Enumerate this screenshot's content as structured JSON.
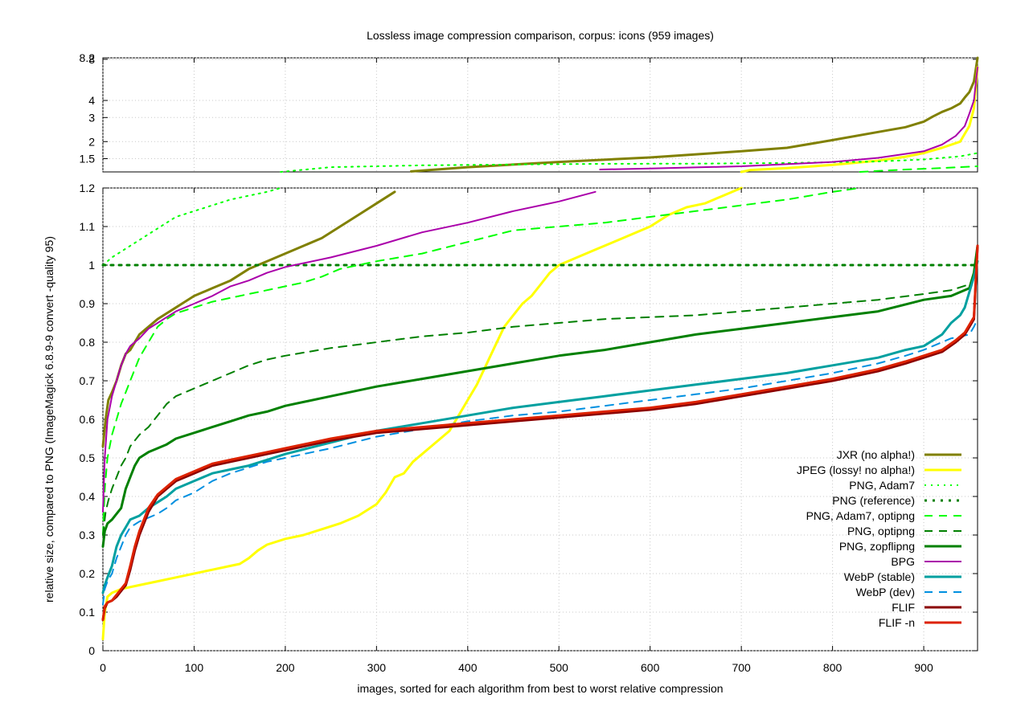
{
  "chart_data": {
    "type": "line",
    "title": "Lossless image compression comparison, corpus: icons (959 images)",
    "xlabel": "images, sorted for each algorithm from best to worst relative compression",
    "ylabel": "relative size, compared to PNG (ImageMagick 6.8.9-9 convert -quality 95)",
    "grid": true,
    "legend_position": "bottom-right",
    "xlim": [
      0,
      959
    ],
    "x_ticks": [
      "0",
      "100",
      "200",
      "300",
      "400",
      "500",
      "600",
      "700",
      "800",
      "900"
    ],
    "panels": [
      {
        "name": "top",
        "scale": "log",
        "ylim": [
          1.2,
          8.2
        ],
        "y_ticks": [
          "1.5",
          "2",
          "3",
          "4",
          "8",
          "8.2"
        ]
      },
      {
        "name": "bottom",
        "scale": "linear",
        "ylim": [
          0,
          1.2
        ],
        "y_ticks": [
          "0",
          "0.1",
          "0.2",
          "0.3",
          "0.4",
          "0.5",
          "0.6",
          "0.7",
          "0.8",
          "0.9",
          "1",
          "1.1",
          "1.2"
        ]
      }
    ],
    "series": [
      {
        "name": "JXR (no alpha!)",
        "color": "#808000",
        "dash": "solid",
        "width": 3,
        "x": [
          0,
          3,
          6,
          10,
          15,
          20,
          25,
          30,
          35,
          40,
          50,
          60,
          70,
          80,
          90,
          100,
          120,
          140,
          160,
          180,
          200,
          220,
          240,
          260,
          280,
          300,
          320,
          338,
          400,
          500,
          600,
          700,
          750,
          800,
          850,
          880,
          900,
          910,
          920,
          930,
          940,
          945,
          950,
          955,
          959
        ],
        "y": [
          0.53,
          0.6,
          0.65,
          0.67,
          0.7,
          0.74,
          0.77,
          0.78,
          0.8,
          0.82,
          0.84,
          0.86,
          0.875,
          0.89,
          0.905,
          0.92,
          0.94,
          0.96,
          0.99,
          1.01,
          1.03,
          1.05,
          1.07,
          1.1,
          1.13,
          1.16,
          1.19,
          1.21,
          1.3,
          1.42,
          1.53,
          1.7,
          1.8,
          2.05,
          2.35,
          2.55,
          2.8,
          3.05,
          3.3,
          3.5,
          3.8,
          4.2,
          4.6,
          5.5,
          8.2
        ]
      },
      {
        "name": "JPEG (lossy! no alpha!)",
        "color": "#ffff00",
        "dash": "solid",
        "width": 3,
        "x": [
          0,
          2,
          5,
          10,
          20,
          40,
          60,
          80,
          100,
          120,
          140,
          150,
          160,
          170,
          180,
          200,
          220,
          240,
          260,
          280,
          300,
          310,
          320,
          330,
          340,
          350,
          360,
          370,
          380,
          390,
          400,
          410,
          420,
          430,
          440,
          450,
          460,
          470,
          480,
          490,
          500,
          520,
          540,
          560,
          580,
          600,
          620,
          640,
          660,
          680,
          700,
          710,
          750,
          800,
          850,
          880,
          900,
          920,
          940,
          950,
          955,
          959
        ],
        "y": [
          0.03,
          0.1,
          0.14,
          0.15,
          0.16,
          0.17,
          0.18,
          0.19,
          0.2,
          0.21,
          0.22,
          0.225,
          0.24,
          0.26,
          0.275,
          0.29,
          0.3,
          0.315,
          0.33,
          0.35,
          0.38,
          0.41,
          0.45,
          0.46,
          0.49,
          0.51,
          0.53,
          0.55,
          0.57,
          0.61,
          0.65,
          0.69,
          0.74,
          0.79,
          0.84,
          0.87,
          0.9,
          0.92,
          0.95,
          0.98,
          1.0,
          1.02,
          1.04,
          1.06,
          1.08,
          1.1,
          1.13,
          1.15,
          1.16,
          1.18,
          1.2,
          1.24,
          1.28,
          1.35,
          1.45,
          1.55,
          1.65,
          1.8,
          2.0,
          2.6,
          3.5,
          7.0
        ]
      },
      {
        "name": "PNG, Adam7",
        "color": "#00ff00",
        "dash": "dotted",
        "width": 2,
        "x": [
          0,
          5,
          10,
          20,
          30,
          40,
          50,
          60,
          70,
          80,
          100,
          120,
          140,
          160,
          180,
          195,
          250,
          350,
          450,
          550,
          650,
          750,
          850,
          900,
          940,
          959
        ],
        "y": [
          1.0,
          1.01,
          1.02,
          1.035,
          1.05,
          1.065,
          1.08,
          1.095,
          1.11,
          1.125,
          1.14,
          1.155,
          1.17,
          1.18,
          1.19,
          1.2,
          1.3,
          1.34,
          1.36,
          1.375,
          1.38,
          1.395,
          1.43,
          1.48,
          1.56,
          1.65
        ]
      },
      {
        "name": "PNG (reference)",
        "color": "#008000",
        "dash": "dotted-thick",
        "width": 3,
        "x": [
          0,
          959
        ],
        "y": [
          1.0,
          1.0
        ]
      },
      {
        "name": "PNG, Adam7, optipng",
        "color": "#00ff00",
        "dash": "dashed",
        "width": 2,
        "x": [
          0,
          2,
          5,
          10,
          15,
          20,
          25,
          30,
          40,
          50,
          60,
          70,
          80,
          100,
          120,
          140,
          160,
          180,
          200,
          220,
          240,
          260,
          280,
          300,
          350,
          400,
          450,
          500,
          550,
          600,
          650,
          700,
          750,
          800,
          830,
          850,
          880,
          920,
          959
        ],
        "y": [
          0.3,
          0.42,
          0.5,
          0.56,
          0.6,
          0.64,
          0.67,
          0.7,
          0.76,
          0.8,
          0.84,
          0.86,
          0.875,
          0.89,
          0.905,
          0.915,
          0.925,
          0.935,
          0.945,
          0.955,
          0.97,
          0.99,
          1.0,
          1.01,
          1.03,
          1.06,
          1.09,
          1.1,
          1.11,
          1.125,
          1.14,
          1.155,
          1.17,
          1.19,
          1.2,
          1.22,
          1.25,
          1.28,
          1.32
        ]
      },
      {
        "name": "PNG, optipng",
        "color": "#008000",
        "dash": "dashed",
        "width": 2,
        "x": [
          0,
          3,
          6,
          10,
          15,
          20,
          25,
          30,
          40,
          50,
          60,
          70,
          80,
          100,
          120,
          140,
          160,
          180,
          200,
          250,
          300,
          350,
          400,
          450,
          500,
          550,
          600,
          650,
          700,
          750,
          800,
          850,
          900,
          930,
          950,
          959
        ],
        "y": [
          0.3,
          0.36,
          0.39,
          0.42,
          0.45,
          0.48,
          0.5,
          0.53,
          0.56,
          0.58,
          0.61,
          0.64,
          0.66,
          0.68,
          0.7,
          0.72,
          0.74,
          0.755,
          0.765,
          0.785,
          0.8,
          0.815,
          0.825,
          0.84,
          0.85,
          0.86,
          0.865,
          0.87,
          0.88,
          0.89,
          0.9,
          0.91,
          0.925,
          0.935,
          0.95,
          0.98
        ]
      },
      {
        "name": "PNG, zopflipng",
        "color": "#008000",
        "dash": "solid",
        "width": 3,
        "x": [
          0,
          2,
          5,
          10,
          15,
          20,
          25,
          30,
          35,
          40,
          50,
          60,
          70,
          80,
          100,
          120,
          140,
          160,
          180,
          200,
          250,
          300,
          350,
          400,
          450,
          500,
          550,
          600,
          650,
          700,
          750,
          800,
          850,
          900,
          930,
          950,
          955,
          959
        ],
        "y": [
          0.27,
          0.31,
          0.33,
          0.34,
          0.355,
          0.37,
          0.42,
          0.45,
          0.48,
          0.5,
          0.515,
          0.525,
          0.535,
          0.55,
          0.565,
          0.58,
          0.595,
          0.61,
          0.62,
          0.635,
          0.66,
          0.685,
          0.705,
          0.725,
          0.745,
          0.765,
          0.78,
          0.8,
          0.82,
          0.835,
          0.85,
          0.865,
          0.88,
          0.91,
          0.92,
          0.94,
          0.98,
          1.05
        ]
      },
      {
        "name": "BPG",
        "color": "#aa00aa",
        "dash": "solid",
        "width": 2,
        "x": [
          0,
          2,
          5,
          10,
          15,
          20,
          25,
          30,
          40,
          50,
          60,
          70,
          80,
          100,
          120,
          140,
          160,
          180,
          200,
          250,
          300,
          350,
          400,
          450,
          500,
          540,
          545,
          600,
          700,
          800,
          850,
          900,
          920,
          935,
          945,
          950,
          955,
          959
        ],
        "y": [
          0.36,
          0.5,
          0.6,
          0.66,
          0.7,
          0.74,
          0.77,
          0.79,
          0.81,
          0.835,
          0.85,
          0.865,
          0.88,
          0.9,
          0.92,
          0.945,
          0.96,
          0.98,
          0.995,
          1.02,
          1.05,
          1.085,
          1.11,
          1.14,
          1.165,
          1.19,
          1.25,
          1.27,
          1.32,
          1.42,
          1.52,
          1.7,
          1.9,
          2.2,
          2.6,
          3.2,
          4.0,
          7.0
        ]
      },
      {
        "name": "WebP (stable)",
        "color": "#00a0a0",
        "dash": "solid",
        "width": 3,
        "x": [
          0,
          2,
          5,
          10,
          15,
          20,
          25,
          30,
          40,
          50,
          60,
          70,
          80,
          100,
          120,
          140,
          160,
          180,
          200,
          250,
          300,
          350,
          400,
          450,
          500,
          550,
          600,
          650,
          700,
          750,
          800,
          850,
          880,
          900,
          920,
          930,
          940,
          945,
          950,
          955,
          959
        ],
        "y": [
          0.15,
          0.17,
          0.19,
          0.22,
          0.27,
          0.3,
          0.32,
          0.34,
          0.35,
          0.37,
          0.385,
          0.4,
          0.42,
          0.44,
          0.46,
          0.47,
          0.48,
          0.495,
          0.51,
          0.54,
          0.57,
          0.59,
          0.61,
          0.63,
          0.645,
          0.66,
          0.675,
          0.69,
          0.705,
          0.72,
          0.74,
          0.76,
          0.78,
          0.79,
          0.82,
          0.85,
          0.87,
          0.89,
          0.93,
          0.97,
          1.01
        ]
      },
      {
        "name": "WebP (dev)",
        "color": "#0090e0",
        "dash": "dashed",
        "width": 2,
        "x": [
          0,
          2,
          5,
          10,
          15,
          20,
          25,
          30,
          40,
          50,
          60,
          70,
          80,
          100,
          120,
          140,
          160,
          180,
          200,
          250,
          300,
          350,
          400,
          450,
          500,
          550,
          600,
          650,
          700,
          750,
          800,
          850,
          880,
          900,
          920,
          930,
          940,
          950,
          955,
          959
        ],
        "y": [
          0.12,
          0.16,
          0.18,
          0.2,
          0.24,
          0.27,
          0.3,
          0.32,
          0.335,
          0.345,
          0.355,
          0.37,
          0.39,
          0.41,
          0.44,
          0.46,
          0.475,
          0.49,
          0.5,
          0.525,
          0.555,
          0.575,
          0.595,
          0.61,
          0.62,
          0.635,
          0.65,
          0.665,
          0.68,
          0.7,
          0.72,
          0.745,
          0.765,
          0.78,
          0.8,
          0.81,
          0.815,
          0.82,
          0.84,
          0.86
        ]
      },
      {
        "name": "FLIF",
        "color": "#8b0000",
        "dash": "solid",
        "width": 3,
        "x": [
          0,
          2,
          5,
          10,
          15,
          20,
          25,
          30,
          35,
          40,
          50,
          60,
          70,
          80,
          100,
          120,
          140,
          160,
          180,
          200,
          250,
          300,
          350,
          400,
          450,
          500,
          550,
          600,
          650,
          700,
          750,
          800,
          850,
          880,
          900,
          920,
          935,
          945,
          950,
          955,
          959
        ],
        "y": [
          0.08,
          0.11,
          0.125,
          0.13,
          0.14,
          0.155,
          0.17,
          0.21,
          0.26,
          0.3,
          0.36,
          0.4,
          0.42,
          0.44,
          0.46,
          0.48,
          0.49,
          0.5,
          0.51,
          0.52,
          0.545,
          0.565,
          0.575,
          0.585,
          0.595,
          0.605,
          0.615,
          0.625,
          0.64,
          0.66,
          0.68,
          0.7,
          0.725,
          0.745,
          0.76,
          0.775,
          0.8,
          0.82,
          0.84,
          0.86,
          1.05
        ]
      },
      {
        "name": "FLIF -n",
        "color": "#dd2200",
        "dash": "solid",
        "width": 3,
        "x": [
          0,
          2,
          5,
          10,
          15,
          20,
          25,
          30,
          35,
          40,
          50,
          60,
          70,
          80,
          100,
          120,
          140,
          160,
          180,
          200,
          250,
          300,
          350,
          400,
          450,
          500,
          550,
          600,
          650,
          700,
          750,
          800,
          850,
          880,
          900,
          920,
          935,
          945,
          950,
          955,
          959
        ],
        "y": [
          0.08,
          0.115,
          0.125,
          0.13,
          0.145,
          0.16,
          0.175,
          0.22,
          0.27,
          0.31,
          0.37,
          0.405,
          0.425,
          0.445,
          0.465,
          0.485,
          0.495,
          0.505,
          0.515,
          0.525,
          0.55,
          0.57,
          0.58,
          0.59,
          0.6,
          0.61,
          0.62,
          0.63,
          0.645,
          0.665,
          0.685,
          0.705,
          0.73,
          0.75,
          0.765,
          0.78,
          0.805,
          0.825,
          0.845,
          0.865,
          1.05
        ]
      }
    ]
  }
}
